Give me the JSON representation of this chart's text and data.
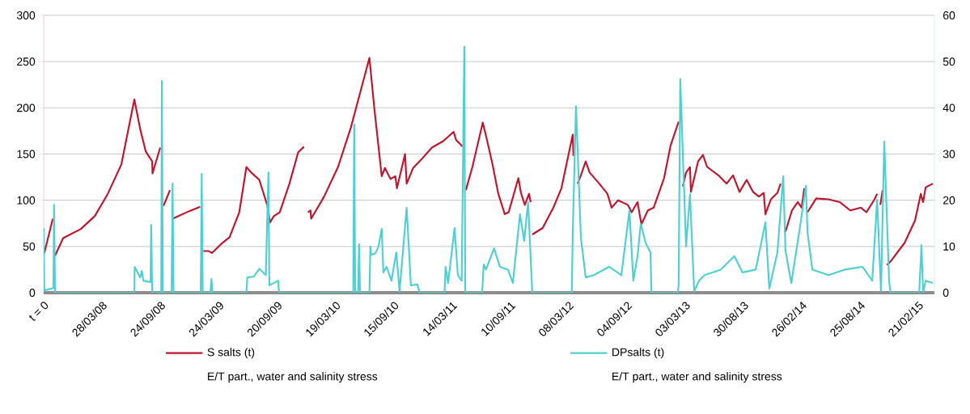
{
  "chart_data": {
    "type": "line",
    "xlim": [
      "2007-09-30",
      "2015-04-12"
    ],
    "ylim": [
      0,
      300
    ],
    "y2lim": [
      0,
      60
    ],
    "xticks": [
      {
        "value": "2007-09-30",
        "label": "t = 0"
      },
      {
        "value": "2008-03-28",
        "label": "28/03/08"
      },
      {
        "value": "2008-09-24",
        "label": "24/09/08"
      },
      {
        "value": "2009-03-24",
        "label": "24/03/09"
      },
      {
        "value": "2009-09-20",
        "label": "20/09/09"
      },
      {
        "value": "2010-03-19",
        "label": "19/03/10"
      },
      {
        "value": "2010-09-15",
        "label": "15/09/10"
      },
      {
        "value": "2011-03-14",
        "label": "14/03/11"
      },
      {
        "value": "2011-09-10",
        "label": "10/09/11"
      },
      {
        "value": "2012-03-08",
        "label": "08/03/12"
      },
      {
        "value": "2012-09-04",
        "label": "04/09/12"
      },
      {
        "value": "2013-03-03",
        "label": "03/03/13"
      },
      {
        "value": "2013-08-30",
        "label": "30/08/13"
      },
      {
        "value": "2014-02-26",
        "label": "26/02/14"
      },
      {
        "value": "2014-08-25",
        "label": "25/08/14"
      },
      {
        "value": "2015-02-21",
        "label": "21/02/15"
      }
    ],
    "yticks": [
      0,
      50,
      100,
      150,
      200,
      250,
      300
    ],
    "y2ticks": [
      0,
      10,
      20,
      30,
      40,
      50,
      60
    ],
    "grid": "y",
    "legend": "bottom",
    "annotations": [
      "E/T part., water and salinity stress",
      "E/T part., water and salinity stress"
    ],
    "series": [
      {
        "name": "S salts (t)",
        "color": "#c0142c",
        "axis": "y",
        "x": [
          "2007-10-02",
          "2007-10-28",
          "2007-10-30",
          "2007-11-04",
          "2007-11-29",
          "2008-01-23",
          "2008-03-06",
          "2008-04-15",
          "2008-05-27",
          "2008-07-06",
          "2008-07-24",
          "2008-08-10",
          "2008-08-30",
          "2008-08-31",
          "2008-09-24",
          "2008-09-29",
          "2008-10-04",
          "2008-10-24",
          "2008-10-28",
          "2008-11-01",
          "2008-12-21",
          "2009-01-25",
          "2009-01-30",
          "2009-02-04",
          "2009-02-21",
          "2009-03-03",
          "2009-04-01",
          "2009-04-26",
          "2009-05-26",
          "2009-06-17",
          "2009-07-02",
          "2009-07-27",
          "2009-08-21",
          "2009-08-29",
          "2009-09-10",
          "2009-09-28",
          "2009-10-28",
          "2009-11-24",
          "2009-12-12",
          "2009-12-18",
          "2009-12-24",
          "2010-01-01",
          "2010-01-03",
          "2010-02-12",
          "2010-03-27",
          "2010-05-06",
          "2010-07-02",
          "2010-07-17",
          "2010-08-09",
          "2010-08-19",
          "2010-09-05",
          "2010-09-20",
          "2010-09-25",
          "2010-10-20",
          "2010-10-25",
          "2010-11-14",
          "2010-12-09",
          "2011-01-11",
          "2011-02-15",
          "2011-03-19",
          "2011-03-27",
          "2011-04-16",
          "2011-04-21",
          "2011-04-26",
          "2011-05-16",
          "2011-06-17",
          "2011-06-27",
          "2011-07-17",
          "2011-08-04",
          "2011-08-24",
          "2011-09-05",
          "2011-10-05",
          "2011-10-13",
          "2011-10-25",
          "2011-11-07",
          "2011-11-12",
          "2011-11-14",
          "2011-11-17",
          "2011-12-19",
          "2012-01-21",
          "2012-02-15",
          "2012-03-21",
          "2012-03-23",
          "2012-03-28",
          "2012-04-05",
          "2012-04-15",
          "2012-04-30",
          "2012-05-12",
          "2012-06-11",
          "2012-07-06",
          "2012-07-19",
          "2012-08-08",
          "2012-09-07",
          "2012-09-19",
          "2012-10-07",
          "2012-10-19",
          "2012-11-08",
          "2012-11-26",
          "2012-12-28",
          "2013-01-17",
          "2013-02-11",
          "2013-02-17",
          "2013-02-24",
          "2013-03-06",
          "2013-03-18",
          "2013-03-21",
          "2013-04-12",
          "2013-04-27",
          "2013-05-10",
          "2013-06-14",
          "2013-07-09",
          "2013-07-29",
          "2013-08-18",
          "2013-09-09",
          "2013-09-29",
          "2013-10-17",
          "2013-11-01",
          "2013-11-06",
          "2013-11-23",
          "2013-12-13",
          "2013-12-23",
          "2013-12-30",
          "2014-01-07",
          "2014-01-27",
          "2014-02-14",
          "2014-02-26",
          "2014-03-06",
          "2014-03-11",
          "2014-03-16",
          "2014-04-12",
          "2014-05-20",
          "2014-06-24",
          "2014-07-26",
          "2014-08-28",
          "2014-09-14",
          "2014-10-09",
          "2014-10-17",
          "2014-10-22",
          "2014-10-27",
          "2014-11-03",
          "2014-11-10",
          "2014-11-16",
          "2014-11-28",
          "2015-01-10",
          "2015-02-11",
          "2015-03-01",
          "2015-03-08",
          "2015-03-16",
          "2015-04-07"
        ],
        "values": [
          43,
          80,
          null,
          40,
          59,
          69,
          83,
          107,
          139,
          209,
          177,
          153,
          142,
          129,
          157,
          null,
          94,
          111,
          null,
          80,
          88,
          93,
          null,
          45,
          45,
          43,
          53,
          60,
          87,
          136,
          130,
          122,
          94,
          76,
          83,
          87,
          118,
          152,
          158,
          null,
          87,
          89,
          80,
          104,
          136,
          179,
          254,
          200,
          126,
          135,
          123,
          126,
          113,
          150,
          118,
          135,
          144,
          157,
          164,
          174,
          165,
          158,
          null,
          111,
          136,
          184,
          170,
          139,
          107,
          85,
          87,
          124,
          108,
          95,
          107,
          98,
          null,
          63,
          70,
          92,
          113,
          171,
          148,
          null,
          118,
          127,
          142,
          130,
          118,
          107,
          92,
          100,
          95,
          87,
          98,
          74,
          89,
          92,
          124,
          159,
          185,
          null,
          115,
          130,
          136,
          109,
          142,
          149,
          136,
          127,
          118,
          127,
          109,
          122,
          109,
          104,
          108,
          85,
          101,
          108,
          118,
          null,
          66,
          89,
          98,
          92,
          113,
          null,
          87,
          102,
          101,
          98,
          89,
          92,
          87,
          101,
          107,
          null,
          95,
          111,
          null,
          30,
          34,
          54,
          78,
          107,
          98,
          114,
          118
        ]
      },
      {
        "name": "DPsalts (t)",
        "color": "#4fd0d0",
        "axis": "y2",
        "x": [
          "2007-09-30",
          "2007-10-02",
          "2007-10-30",
          "2007-11-01",
          "2007-11-04",
          "2008-07-06",
          "2008-07-07",
          "2008-07-24",
          "2008-07-29",
          "2008-08-03",
          "2008-08-25",
          "2008-08-27",
          "2008-08-30",
          "2008-09-27",
          "2008-09-29",
          "2008-10-02",
          "2008-10-29",
          "2008-11-01",
          "2008-11-04",
          "2009-01-27",
          "2009-01-30",
          "2009-02-02",
          "2009-02-26",
          "2009-03-01",
          "2009-03-04",
          "2009-06-17",
          "2009-06-20",
          "2009-07-10",
          "2009-07-27",
          "2009-08-16",
          "2009-08-24",
          "2009-08-27",
          "2009-09-23",
          "2009-09-26",
          "2010-05-13",
          "2010-05-16",
          "2010-05-19",
          "2010-05-28",
          "2010-05-31",
          "2010-06-03",
          "2010-07-02",
          "2010-07-05",
          "2010-07-07",
          "2010-07-20",
          "2010-07-30",
          "2010-08-09",
          "2010-08-14",
          "2010-08-24",
          "2010-09-08",
          "2010-09-23",
          "2010-10-03",
          "2010-10-25",
          "2010-11-07",
          "2010-11-27",
          "2010-12-04",
          "2011-02-19",
          "2011-02-22",
          "2011-03-02",
          "2011-03-22",
          "2011-04-01",
          "2011-04-13",
          "2011-04-21",
          "2011-04-24",
          "2011-06-15",
          "2011-06-20",
          "2011-06-27",
          "2011-07-22",
          "2011-08-09",
          "2011-09-03",
          "2011-09-18",
          "2011-10-10",
          "2011-10-23",
          "2011-11-04",
          "2011-11-17",
          "2012-03-18",
          "2012-03-21",
          "2012-03-31",
          "2012-04-15",
          "2012-04-30",
          "2012-05-25",
          "2012-07-11",
          "2012-08-18",
          "2012-09-12",
          "2012-09-24",
          "2012-10-07",
          "2012-10-17",
          "2012-11-01",
          "2012-11-16",
          "2012-11-19",
          "2013-02-08",
          "2013-02-11",
          "2013-02-16",
          "2013-03-06",
          "2013-03-18",
          "2013-03-31",
          "2013-04-15",
          "2013-05-02",
          "2013-06-21",
          "2013-08-02",
          "2013-08-27",
          "2013-10-07",
          "2013-11-06",
          "2013-11-18",
          "2013-12-13",
          "2013-12-31",
          "2014-01-07",
          "2014-01-25",
          "2014-02-21",
          "2014-03-11",
          "2014-03-16",
          "2014-03-31",
          "2014-05-20",
          "2014-07-09",
          "2014-09-02",
          "2014-10-02",
          "2014-10-17",
          "2014-10-29",
          "2014-11-08",
          "2014-11-23",
          "2014-11-27",
          "2015-02-24",
          "2015-03-03",
          "2015-03-08",
          "2015-03-16",
          "2015-04-07"
        ],
        "values": [
          14,
          0.5,
          1,
          19,
          0,
          0,
          5.6,
          3.3,
          4.7,
          2.6,
          2.3,
          14.7,
          0,
          0,
          45.8,
          0,
          0,
          23.6,
          0,
          0,
          25.7,
          0,
          0,
          3,
          0,
          0,
          3.3,
          3.5,
          5.2,
          3.8,
          26,
          1.6,
          2.6,
          0,
          0,
          36.4,
          0,
          0,
          10.5,
          0,
          0,
          10,
          8.2,
          8.5,
          10,
          13.8,
          4.4,
          5.6,
          2.6,
          8.7,
          0.3,
          18.4,
          1.6,
          1.8,
          0,
          0,
          5.6,
          2.1,
          14,
          3.8,
          2.6,
          53.2,
          0,
          0,
          6.1,
          5,
          9.6,
          5.6,
          5,
          2.1,
          17,
          11.2,
          19.6,
          0,
          0,
          13.2,
          40.3,
          12,
          3.3,
          3.8,
          5.6,
          3.8,
          17.8,
          2.6,
          7.9,
          14.9,
          10.8,
          8.7,
          0,
          0,
          1.6,
          46.2,
          10,
          21.3,
          0.3,
          2.6,
          3.8,
          5,
          7.9,
          4.4,
          5,
          15.2,
          0.9,
          8.7,
          25.2,
          9.1,
          2.1,
          14.3,
          23.1,
          13.1,
          5,
          3.8,
          5,
          5.6,
          2.6,
          20.1,
          0.3,
          32.7,
          2.6,
          0,
          0,
          10.3,
          0,
          2.6,
          2.1
        ]
      }
    ]
  }
}
